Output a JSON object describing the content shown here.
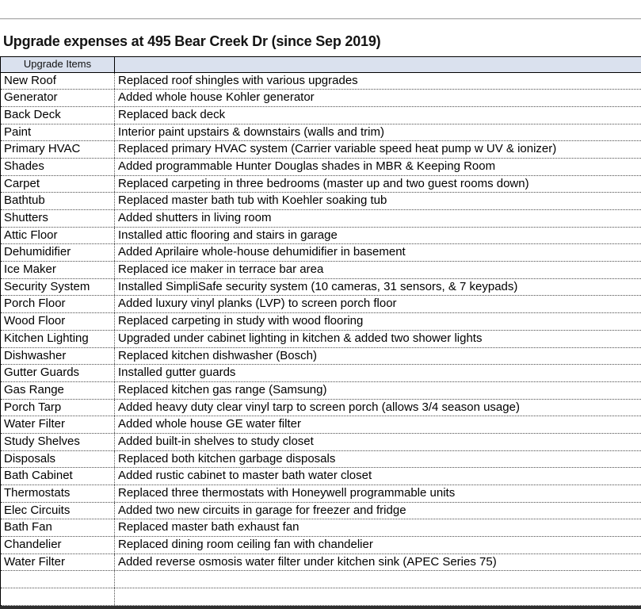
{
  "page": {
    "title": "Upgrade expenses at 495 Bear Creek Dr (since Sep 2019)"
  },
  "colors": {
    "header_bg": "#dae1ee",
    "grid_line": "#4d4d4d",
    "solid_border": "#000000",
    "top_rule": "#aaaaaa",
    "bottom_bar": "#2f2f2f"
  },
  "table": {
    "header": {
      "col1": "Upgrade Items",
      "col2": ""
    },
    "empty_row_count": 2,
    "rows": [
      {
        "item": "New Roof",
        "description": "Replaced roof shingles with various upgrades"
      },
      {
        "item": "Generator",
        "description": "Added whole house Kohler generator"
      },
      {
        "item": "Back Deck",
        "description": "Replaced back deck"
      },
      {
        "item": "Paint",
        "description": "Interior paint upstairs & downstairs (walls and trim)"
      },
      {
        "item": "Primary HVAC",
        "description": "Replaced primary HVAC system (Carrier variable speed heat pump w UV & ionizer)"
      },
      {
        "item": "Shades",
        "description": "Added programmable Hunter Douglas shades in MBR & Keeping Room"
      },
      {
        "item": "Carpet",
        "description": "Replaced carpeting in three bedrooms (master up and two guest rooms down)"
      },
      {
        "item": "Bathtub",
        "description": "Replaced master bath tub with Koehler soaking tub"
      },
      {
        "item": "Shutters",
        "description": "Added shutters in living room"
      },
      {
        "item": "Attic Floor",
        "description": "Installed attic flooring and stairs in garage"
      },
      {
        "item": "Dehumidifier",
        "description": "Added Aprilaire whole-house dehumidifier in basement"
      },
      {
        "item": "Ice Maker",
        "description": "Replaced ice maker in terrace bar area"
      },
      {
        "item": "Security System",
        "description": "Installed SimpliSafe security system (10 cameras, 31 sensors, & 7 keypads)"
      },
      {
        "item": "Porch Floor",
        "description": "Added luxury vinyl planks (LVP) to screen porch floor"
      },
      {
        "item": "Wood Floor",
        "description": "Replaced carpeting in study with wood flooring"
      },
      {
        "item": "Kitchen Lighting",
        "description": "Upgraded under cabinet lighting in kitchen & added two shower lights"
      },
      {
        "item": "Dishwasher",
        "description": "Replaced kitchen dishwasher (Bosch)"
      },
      {
        "item": "Gutter Guards",
        "description": "Installed gutter guards"
      },
      {
        "item": "Gas Range",
        "description": "Replaced kitchen gas range (Samsung)"
      },
      {
        "item": "Porch Tarp",
        "description": "Added heavy duty clear vinyl tarp to screen porch (allows 3/4 season usage)"
      },
      {
        "item": "Water Filter",
        "description": "Added whole house GE water filter"
      },
      {
        "item": "Study Shelves",
        "description": "Added built-in shelves to study closet"
      },
      {
        "item": "Disposals",
        "description": "Replaced both kitchen garbage disposals"
      },
      {
        "item": "Bath Cabinet",
        "description": "Added rustic cabinet to master bath water closet"
      },
      {
        "item": "Thermostats",
        "description": "Replaced three thermostats with Honeywell programmable units"
      },
      {
        "item": "Elec Circuits",
        "description": "Added two new circuits in garage for freezer and fridge"
      },
      {
        "item": "Bath Fan",
        "description": "Replaced master bath exhaust fan"
      },
      {
        "item": "Chandelier",
        "description": "Replaced dining room ceiling fan with chandelier"
      },
      {
        "item": "Water Filter",
        "description": "Added reverse osmosis water filter under kitchen sink (APEC Series 75)"
      }
    ]
  }
}
